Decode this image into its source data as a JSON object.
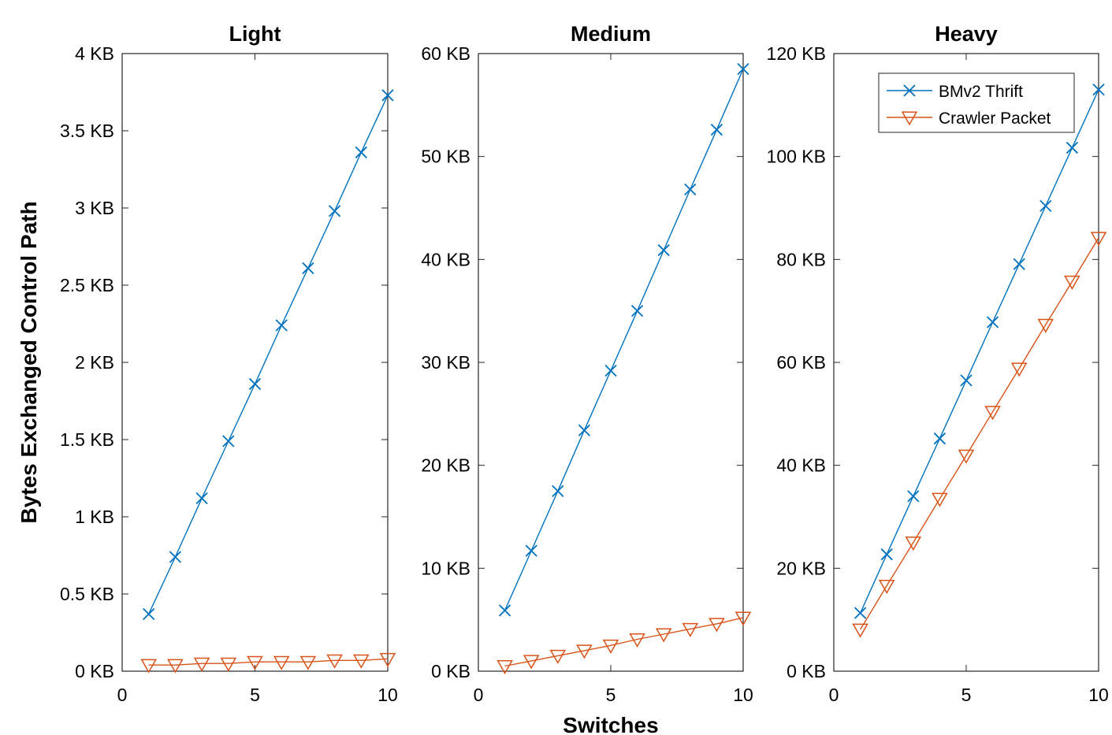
{
  "figure": {
    "ylabel": "Bytes Exchanged Control Path",
    "xlabel": "Switches"
  },
  "colors": {
    "bmv2": "#0072BD",
    "crawler": "#D95319"
  },
  "legend": {
    "placement": "top-right of Heavy panel",
    "entries": [
      {
        "label": "BMv2 Thrift",
        "marker": "x",
        "color": "#0072BD"
      },
      {
        "label": "Crawler Packet",
        "marker": "triangle-down",
        "color": "#D95319"
      }
    ]
  },
  "chart_data": [
    {
      "type": "line",
      "title": "Light",
      "xlabel": "",
      "ylabel": "Bytes Exchanged Control Path",
      "xlim": [
        0,
        10
      ],
      "ylim": [
        0,
        4
      ],
      "xticks": [
        0,
        5,
        10
      ],
      "xtick_labels": [
        "0",
        "5",
        "10"
      ],
      "yticks": [
        0,
        0.5,
        1,
        1.5,
        2,
        2.5,
        3,
        3.5,
        4
      ],
      "ytick_labels": [
        "0 KB",
        "0.5 KB",
        "1 KB",
        "1.5 KB",
        "2 KB",
        "2.5 KB",
        "3 KB",
        "3.5 KB",
        "4 KB"
      ],
      "grid": false,
      "x": [
        1,
        2,
        3,
        4,
        5,
        6,
        7,
        8,
        9,
        10
      ],
      "series": [
        {
          "name": "BMv2 Thrift",
          "marker": "x",
          "values": [
            0.37,
            0.74,
            1.12,
            1.49,
            1.86,
            2.24,
            2.61,
            2.98,
            3.36,
            3.73
          ]
        },
        {
          "name": "Crawler Packet",
          "marker": "triangle-down",
          "values": [
            0.04,
            0.04,
            0.05,
            0.05,
            0.06,
            0.06,
            0.06,
            0.07,
            0.07,
            0.08
          ]
        }
      ]
    },
    {
      "type": "line",
      "title": "Medium",
      "xlabel": "Switches",
      "ylabel": "",
      "xlim": [
        0,
        10
      ],
      "ylim": [
        0,
        60
      ],
      "xticks": [
        0,
        5,
        10
      ],
      "xtick_labels": [
        "0",
        "5",
        "10"
      ],
      "yticks": [
        0,
        10,
        20,
        30,
        40,
        50,
        60
      ],
      "ytick_labels": [
        "0 KB",
        "10 KB",
        "20 KB",
        "30 KB",
        "40 KB",
        "50 KB",
        "60 KB"
      ],
      "grid": false,
      "x": [
        1,
        2,
        3,
        4,
        5,
        6,
        7,
        8,
        9,
        10
      ],
      "series": [
        {
          "name": "BMv2 Thrift",
          "marker": "x",
          "values": [
            5.9,
            11.7,
            17.5,
            23.4,
            29.2,
            35.0,
            40.9,
            46.8,
            52.6,
            58.5
          ]
        },
        {
          "name": "Crawler Packet",
          "marker": "triangle-down",
          "values": [
            0.5,
            1.0,
            1.5,
            2.0,
            2.5,
            3.1,
            3.6,
            4.1,
            4.6,
            5.2
          ]
        }
      ]
    },
    {
      "type": "line",
      "title": "Heavy",
      "xlabel": "",
      "ylabel": "",
      "xlim": [
        0,
        10
      ],
      "ylim": [
        0,
        120
      ],
      "xticks": [
        0,
        5,
        10
      ],
      "xtick_labels": [
        "0",
        "5",
        "10"
      ],
      "yticks": [
        0,
        20,
        40,
        60,
        80,
        100,
        120
      ],
      "ytick_labels": [
        "0 KB",
        "20 KB",
        "40 KB",
        "60 KB",
        "80 KB",
        "100 KB",
        "120 KB"
      ],
      "grid": false,
      "x": [
        1,
        2,
        3,
        4,
        5,
        6,
        7,
        8,
        9,
        10
      ],
      "series": [
        {
          "name": "BMv2 Thrift",
          "marker": "x",
          "values": [
            11.3,
            22.7,
            34.0,
            45.2,
            56.5,
            67.8,
            79.1,
            90.4,
            101.7,
            113.0
          ]
        },
        {
          "name": "Crawler Packet",
          "marker": "triangle-down",
          "values": [
            8.1,
            16.6,
            25.0,
            33.5,
            41.9,
            50.4,
            58.8,
            67.3,
            75.7,
            84.2
          ]
        }
      ]
    }
  ]
}
